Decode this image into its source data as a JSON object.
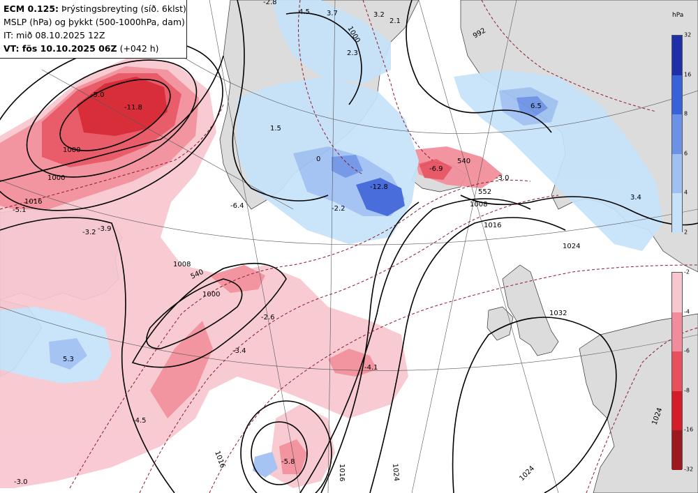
{
  "header": {
    "model": "ECM 0.125:",
    "field": "Þrýstingsbreyting (síð. 6klst)",
    "line2": "MSLP (hPa) og þykkt (500-1000hPa, dam)",
    "init": "IT: mið 08.10.2025 12Z",
    "valid_bold": "VT: fös 10.10.2025 06Z",
    "valid_lead": "(+042 h)"
  },
  "colorbar": {
    "unit": "hPa",
    "positive": {
      "labels": [
        "32",
        "16",
        "8",
        "6",
        "4",
        "2"
      ],
      "colors": [
        "#1f2fa8",
        "#3a62d8",
        "#6b92e6",
        "#9ec0f2",
        "#c6e2fa"
      ]
    },
    "negative": {
      "labels": [
        "-2",
        "-4",
        "-6",
        "-8",
        "-16",
        "-32"
      ],
      "colors": [
        "#f8c6cf",
        "#f28c9a",
        "#e8505e",
        "#d51d2a",
        "#9c1a1f"
      ]
    }
  },
  "map": {
    "ocean_color": "#ffffff",
    "land_color": "#dcdcdc",
    "isobar_labels": [
      "1000",
      "1000",
      "1016",
      "1008",
      "1000",
      "1016",
      "1016",
      "1024",
      "1008",
      "1016",
      "1024",
      "1032",
      "1024",
      "1024",
      "1000",
      "992"
    ],
    "thickness_labels": [
      "540",
      "540",
      "552"
    ],
    "change_values": [
      "-5.0",
      "-11.8",
      "-5.1",
      "-3.2",
      "-3.9",
      "-6.4",
      "-2.6",
      "-3.4",
      "-4.5",
      "-5.8",
      "-3.0",
      "-4.1",
      "-2.2",
      "-3.0",
      "-6.9",
      "-12.8",
      "5.3",
      "-2.8",
      "4.5",
      "3.7",
      "3.2",
      "2.1",
      "2.3",
      "1.5",
      "0",
      "3.4",
      "6.5"
    ]
  }
}
